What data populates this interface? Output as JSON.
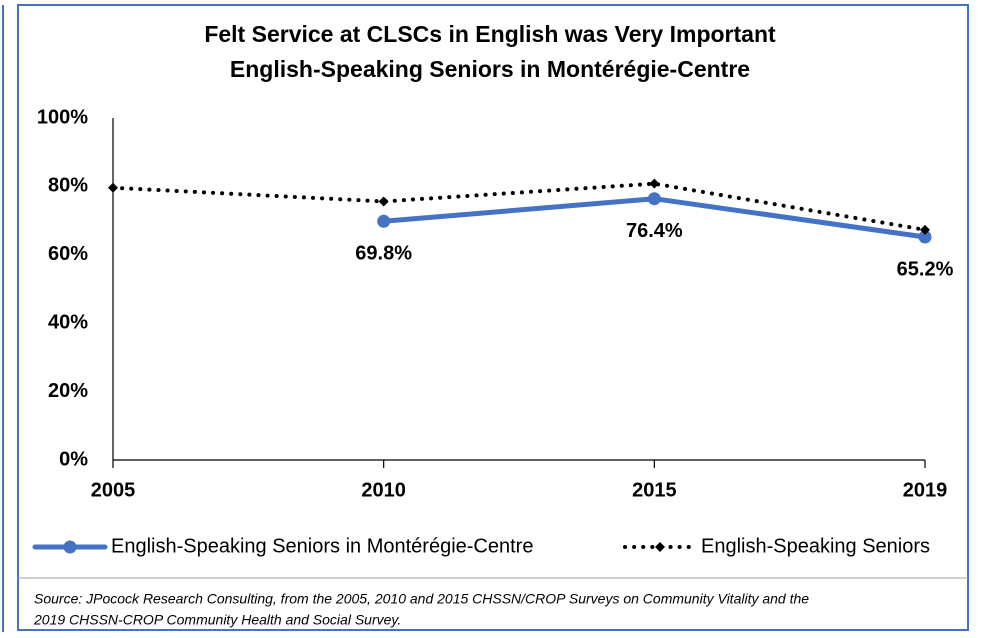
{
  "chart_data": {
    "type": "line",
    "title": "Felt Service at CLSCs in English was Very Important",
    "subtitle": "English-Speaking Seniors in Montérégie-Centre",
    "categories": [
      "2005",
      "2010",
      "2015",
      "2019"
    ],
    "series": [
      {
        "name": "English-Speaking Seniors in Montérégie-Centre",
        "color": "#4472c4",
        "style": "solid",
        "values": [
          null,
          69.8,
          76.4,
          65.2
        ],
        "value_labels": [
          null,
          "69.8%",
          "76.4%",
          "65.2%"
        ]
      },
      {
        "name": "English-Speaking Seniors",
        "color": "#000000",
        "style": "dotted",
        "values": [
          79.6,
          75.6,
          80.8,
          67.3
        ]
      }
    ],
    "ylim": [
      0,
      100
    ],
    "yticks": [
      {
        "value": 0,
        "label": "0%"
      },
      {
        "value": 20,
        "label": "20%"
      },
      {
        "value": 40,
        "label": "40%"
      },
      {
        "value": 60,
        "label": "60%"
      },
      {
        "value": 80,
        "label": "80%"
      },
      {
        "value": 100,
        "label": "100%"
      }
    ],
    "grid": false,
    "legend": "bottom",
    "source": [
      "Source: JPocock Research Consulting, from the 2005, 2010  and 2015  CHSSN/CROP Surveys on Community Vitality and the",
      "2019  CHSSN-CROP Community Health and Social Survey."
    ]
  }
}
